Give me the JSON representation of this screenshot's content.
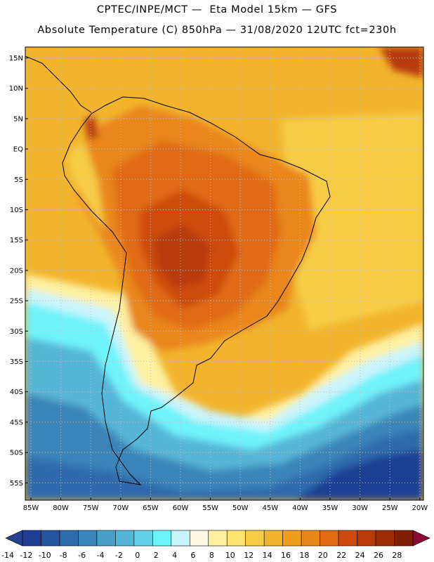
{
  "header": {
    "line1": "CPTEC/INPE/MCT —  Eta Model 15km — GFS",
    "line2": "Absolute Temperature (C) 850hPa — 31/08/2020 12UTC fct=230h"
  },
  "map": {
    "lat_labels": [
      "15N",
      "10N",
      "5N",
      "EQ",
      "5S",
      "10S",
      "15S",
      "20S",
      "25S",
      "30S",
      "35S",
      "40S",
      "45S",
      "50S",
      "55S"
    ],
    "lon_labels": [
      "85W",
      "80W",
      "75W",
      "70W",
      "65W",
      "60W",
      "55W",
      "50W",
      "45W",
      "40W",
      "35W",
      "30W",
      "25W",
      "20W"
    ]
  },
  "colorbar": {
    "colors": [
      "#1f3f94",
      "#26549e",
      "#2e6bab",
      "#3a84b9",
      "#4a9fc9",
      "#56b6d6",
      "#5fd0e4",
      "#6ff3fa",
      "#c9f4fb",
      "#fdf6e3",
      "#fdf0a0",
      "#fce36e",
      "#f7cc45",
      "#f2b42c",
      "#f09f1c",
      "#e9861a",
      "#e06a14",
      "#cc4b0c",
      "#b73a08",
      "#9c2b06",
      "#7e1f05"
    ],
    "low_color": "#25418f",
    "high_color": "#8b0a33",
    "tick_labels": [
      "-14",
      "-12",
      "-10",
      "-8",
      "-6",
      "-4",
      "-2",
      "0",
      "2",
      "4",
      "6",
      "8",
      "10",
      "12",
      "14",
      "16",
      "18",
      "20",
      "22",
      "24",
      "26",
      "28"
    ]
  }
}
